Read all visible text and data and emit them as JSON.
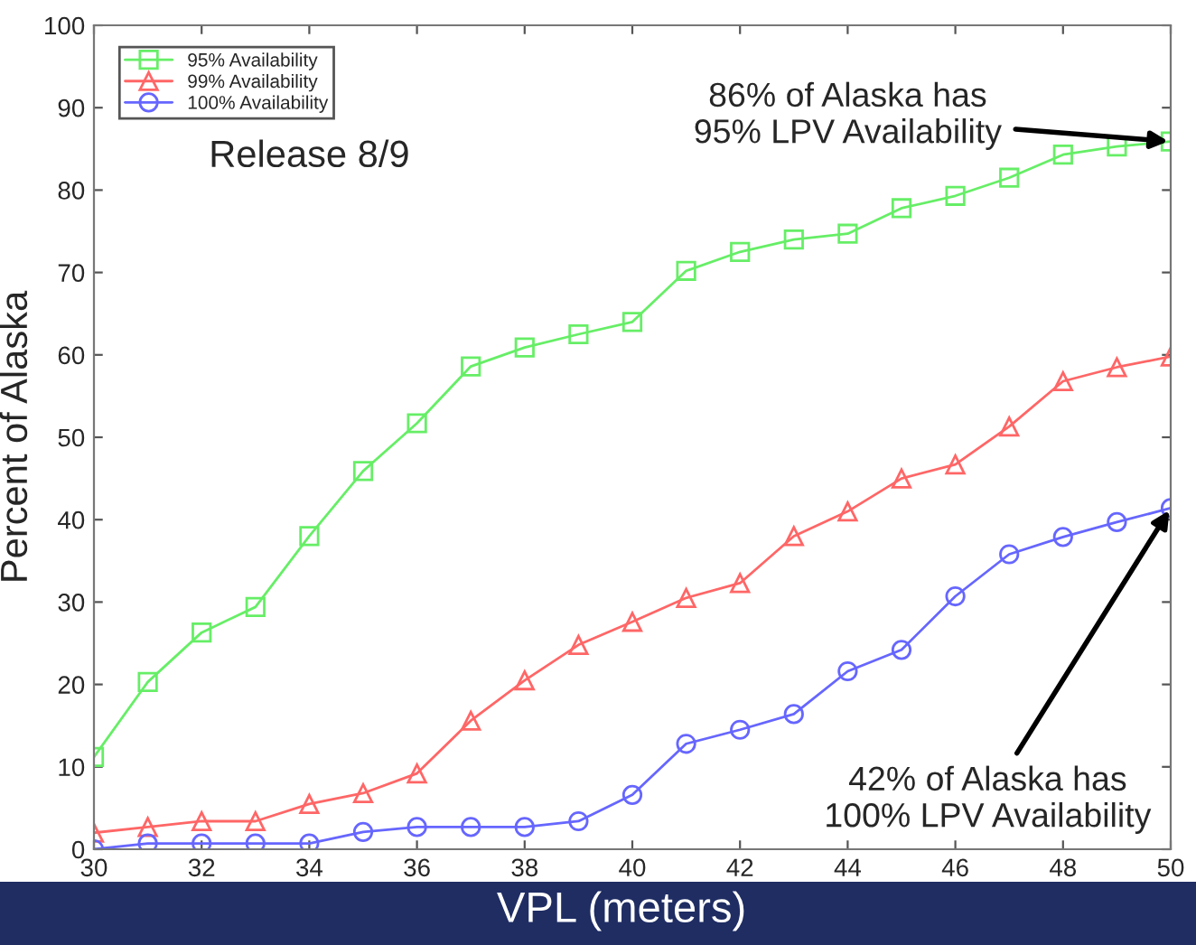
{
  "chart_data": {
    "type": "line",
    "xlabel": "VPL (meters)",
    "ylabel": "Percent of Alaska",
    "x": [
      30,
      31,
      32,
      33,
      34,
      35,
      36,
      37,
      38,
      39,
      40,
      41,
      42,
      43,
      44,
      45,
      46,
      47,
      48,
      49,
      50
    ],
    "series": [
      {
        "name": "95% Availability",
        "color": "#66ee66",
        "marker": "square",
        "values": [
          11.2,
          20.3,
          26.3,
          29.4,
          38,
          45.9,
          51.7,
          58.6,
          60.9,
          62.5,
          64,
          70.2,
          72.5,
          74,
          74.7,
          77.8,
          79.3,
          81.5,
          84.3,
          85.3,
          85.9
        ]
      },
      {
        "name": "99% Availability",
        "color": "#ff6666",
        "marker": "triangle",
        "values": [
          2,
          2.7,
          3.4,
          3.4,
          5.5,
          6.8,
          9.2,
          15.6,
          20.5,
          24.8,
          27.6,
          30.5,
          32.3,
          38,
          41,
          45,
          46.7,
          51.3,
          56.8,
          58.5,
          59.8
        ]
      },
      {
        "name": "100% Availability",
        "color": "#6666ff",
        "marker": "circle",
        "values": [
          0,
          0.7,
          0.7,
          0.7,
          0.7,
          2.1,
          2.7,
          2.7,
          2.7,
          3.4,
          6.6,
          12.8,
          14.5,
          16.4,
          21.6,
          24.2,
          30.7,
          35.8,
          37.9,
          39.7,
          41.4
        ]
      }
    ],
    "annotations": [
      "Release 8/9",
      {
        "text": "86% of Alaska has\n95% LPV Availability",
        "x": 50,
        "y": 85.9
      },
      {
        "text": "42% of Alaska has\n100% LPV Availability",
        "x": 50,
        "y": 41.4
      }
    ],
    "xlim": [
      30,
      50
    ],
    "ylim": [
      0,
      100
    ],
    "xticks": [
      30,
      32,
      34,
      36,
      38,
      40,
      42,
      44,
      46,
      48,
      50
    ],
    "yticks": [
      0,
      10,
      20,
      30,
      40,
      50,
      60,
      70,
      80,
      90,
      100
    ],
    "grid": false,
    "legend": "top left",
    "line_style": "solid"
  }
}
